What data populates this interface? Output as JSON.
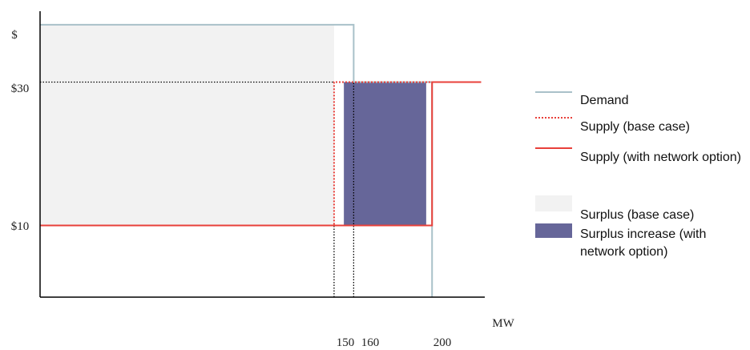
{
  "chart_data": {
    "type": "area",
    "xlabel": "MW",
    "ylabel": "$",
    "x_ticks": [
      "150",
      "160",
      "200"
    ],
    "y_ticks": [
      "$30",
      "$10"
    ],
    "series": [
      {
        "name": "Demand",
        "style": "solid",
        "color": "#a9c1c9",
        "points": [
          [
            0,
            38
          ],
          [
            160,
            38
          ],
          [
            160,
            30
          ],
          [
            200,
            30
          ],
          [
            200,
            0
          ]
        ]
      },
      {
        "name": "Supply (base case)",
        "style": "dotted",
        "color": "#e8403a",
        "points": [
          [
            0,
            10
          ],
          [
            150,
            10
          ],
          [
            150,
            30
          ],
          [
            225,
            30
          ]
        ]
      },
      {
        "name": "Supply (with network option)",
        "style": "solid",
        "color": "#e8403a",
        "points": [
          [
            0,
            10
          ],
          [
            200,
            10
          ],
          [
            200,
            30
          ],
          [
            225,
            30
          ]
        ]
      }
    ],
    "areas": [
      {
        "name": "Surplus (base case)",
        "color": "#f2f2f2",
        "x": [
          0,
          150
        ],
        "y": [
          10,
          38
        ]
      },
      {
        "name": "Surplus increase (with network option)",
        "color": "#666699",
        "x": [
          155,
          197
        ],
        "y": [
          10,
          30
        ]
      }
    ],
    "guides": [
      {
        "type": "h",
        "y": 30,
        "x": [
          0,
          150
        ]
      },
      {
        "type": "v",
        "x": 150,
        "y": [
          0,
          10
        ]
      },
      {
        "type": "v",
        "x": 160,
        "y": [
          0,
          30
        ]
      }
    ],
    "xlim": [
      0,
      230
    ],
    "ylim": [
      0,
      40
    ]
  },
  "legend": {
    "items": [
      {
        "label": "Demand"
      },
      {
        "label": "Supply (base case)"
      },
      {
        "label": "Supply (with network option)"
      },
      {
        "label": "Surplus (base case)"
      },
      {
        "label": "Surplus increase (with network option)"
      }
    ]
  }
}
